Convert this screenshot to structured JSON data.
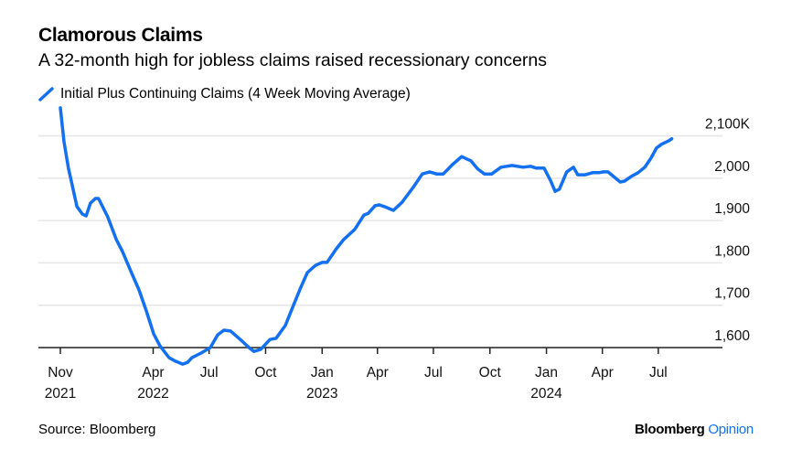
{
  "title": "Clamorous Claims",
  "subtitle": "A 32-month high for jobless claims raised recessionary concerns",
  "source": "Source: Bloomberg",
  "brand": {
    "name": "Bloomberg",
    "suffix": "Opinion"
  },
  "colors": {
    "line": "#1370f0",
    "grid": "#e6e6e6",
    "axis": "#222222",
    "brand_accent": "#1370f0"
  },
  "chart_data": {
    "type": "line",
    "title": "Clamorous Claims",
    "subtitle": "A 32-month high for jobless claims raised recessionary concerns",
    "xlabel": "",
    "ylabel": "",
    "ylim": [
      1600,
      2100
    ],
    "y_unit": "K",
    "grid": true,
    "legend": "top-left",
    "y_ticks": [
      {
        "value": 2100,
        "label": "2,100K"
      },
      {
        "value": 2000,
        "label": "2,000"
      },
      {
        "value": 1900,
        "label": "1,900"
      },
      {
        "value": 1800,
        "label": "1,800"
      },
      {
        "value": 1700,
        "label": "1,700"
      },
      {
        "value": 1600,
        "label": "1,600"
      }
    ],
    "x_ticks": [
      {
        "date": "2021-11-01",
        "label": "Nov",
        "year": "2021"
      },
      {
        "date": "2022-04-01",
        "label": "Apr",
        "year": "2022"
      },
      {
        "date": "2022-07-01",
        "label": "Jul",
        "year": ""
      },
      {
        "date": "2022-10-01",
        "label": "Oct",
        "year": ""
      },
      {
        "date": "2023-01-01",
        "label": "Jan",
        "year": "2023"
      },
      {
        "date": "2023-04-01",
        "label": "Apr",
        "year": ""
      },
      {
        "date": "2023-07-01",
        "label": "Jul",
        "year": ""
      },
      {
        "date": "2023-10-01",
        "label": "Oct",
        "year": ""
      },
      {
        "date": "2024-01-01",
        "label": "Jan",
        "year": "2024"
      },
      {
        "date": "2024-04-01",
        "label": "Apr",
        "year": ""
      },
      {
        "date": "2024-07-01",
        "label": "Jul",
        "year": ""
      }
    ],
    "series": [
      {
        "name": "Initial Plus Continuing Claims (4 Week Moving Average)",
        "x": [
          "2021-11-01",
          "2021-11-07",
          "2021-11-14",
          "2021-11-28",
          "2021-12-07",
          "2021-12-13",
          "2021-12-20",
          "2021-12-28",
          "2022-01-02",
          "2022-01-17",
          "2022-01-31",
          "2022-02-10",
          "2022-02-24",
          "2022-03-09",
          "2022-03-21",
          "2022-04-02",
          "2022-04-12",
          "2022-04-27",
          "2022-05-07",
          "2022-05-19",
          "2022-05-27",
          "2022-06-03",
          "2022-06-18",
          "2022-07-03",
          "2022-07-15",
          "2022-07-25",
          "2022-08-05",
          "2022-08-24",
          "2022-09-04",
          "2022-09-12",
          "2022-09-23",
          "2022-10-08",
          "2022-10-18",
          "2022-11-02",
          "2022-11-14",
          "2022-11-26",
          "2022-12-08",
          "2022-12-21",
          "2023-01-01",
          "2023-01-09",
          "2023-01-24",
          "2023-02-05",
          "2023-02-23",
          "2023-03-10",
          "2023-03-17",
          "2023-03-28",
          "2023-04-04",
          "2023-04-12",
          "2023-04-27",
          "2023-05-11",
          "2023-05-29",
          "2023-06-13",
          "2023-06-25",
          "2023-07-06",
          "2023-07-17",
          "2023-08-01",
          "2023-08-16",
          "2023-08-31",
          "2023-09-11",
          "2023-09-22",
          "2023-10-04",
          "2023-10-19",
          "2023-11-06",
          "2023-11-24",
          "2023-12-06",
          "2023-12-15",
          "2023-12-28",
          "2024-01-08",
          "2024-01-15",
          "2024-01-22",
          "2024-02-03",
          "2024-02-14",
          "2024-02-21",
          "2024-03-04",
          "2024-03-16",
          "2024-03-26",
          "2024-04-03",
          "2024-04-10",
          "2024-04-21",
          "2024-04-30",
          "2024-05-07",
          "2024-05-18",
          "2024-05-29",
          "2024-06-09",
          "2024-06-19",
          "2024-06-28",
          "2024-07-06",
          "2024-07-19",
          "2024-07-23"
        ],
        "y": [
          2166,
          2086,
          2025,
          1933,
          1915,
          1911,
          1941,
          1952,
          1952,
          1909,
          1855,
          1827,
          1779,
          1736,
          1686,
          1632,
          1604,
          1576,
          1568,
          1561,
          1565,
          1576,
          1587,
          1600,
          1630,
          1641,
          1639,
          1615,
          1600,
          1591,
          1596,
          1619,
          1622,
          1652,
          1695,
          1738,
          1777,
          1794,
          1801,
          1801,
          1833,
          1855,
          1879,
          1913,
          1917,
          1935,
          1937,
          1933,
          1924,
          1943,
          1978,
          2010,
          2015,
          2010,
          2010,
          2032,
          2051,
          2041,
          2022,
          2010,
          2010,
          2026,
          2030,
          2026,
          2028,
          2024,
          2024,
          1993,
          1969,
          1974,
          2015,
          2026,
          2008,
          2008,
          2013,
          2013,
          2015,
          2015,
          2002,
          1991,
          1993,
          2004,
          2013,
          2026,
          2047,
          2071,
          2080,
          2089,
          2093
        ]
      }
    ]
  }
}
